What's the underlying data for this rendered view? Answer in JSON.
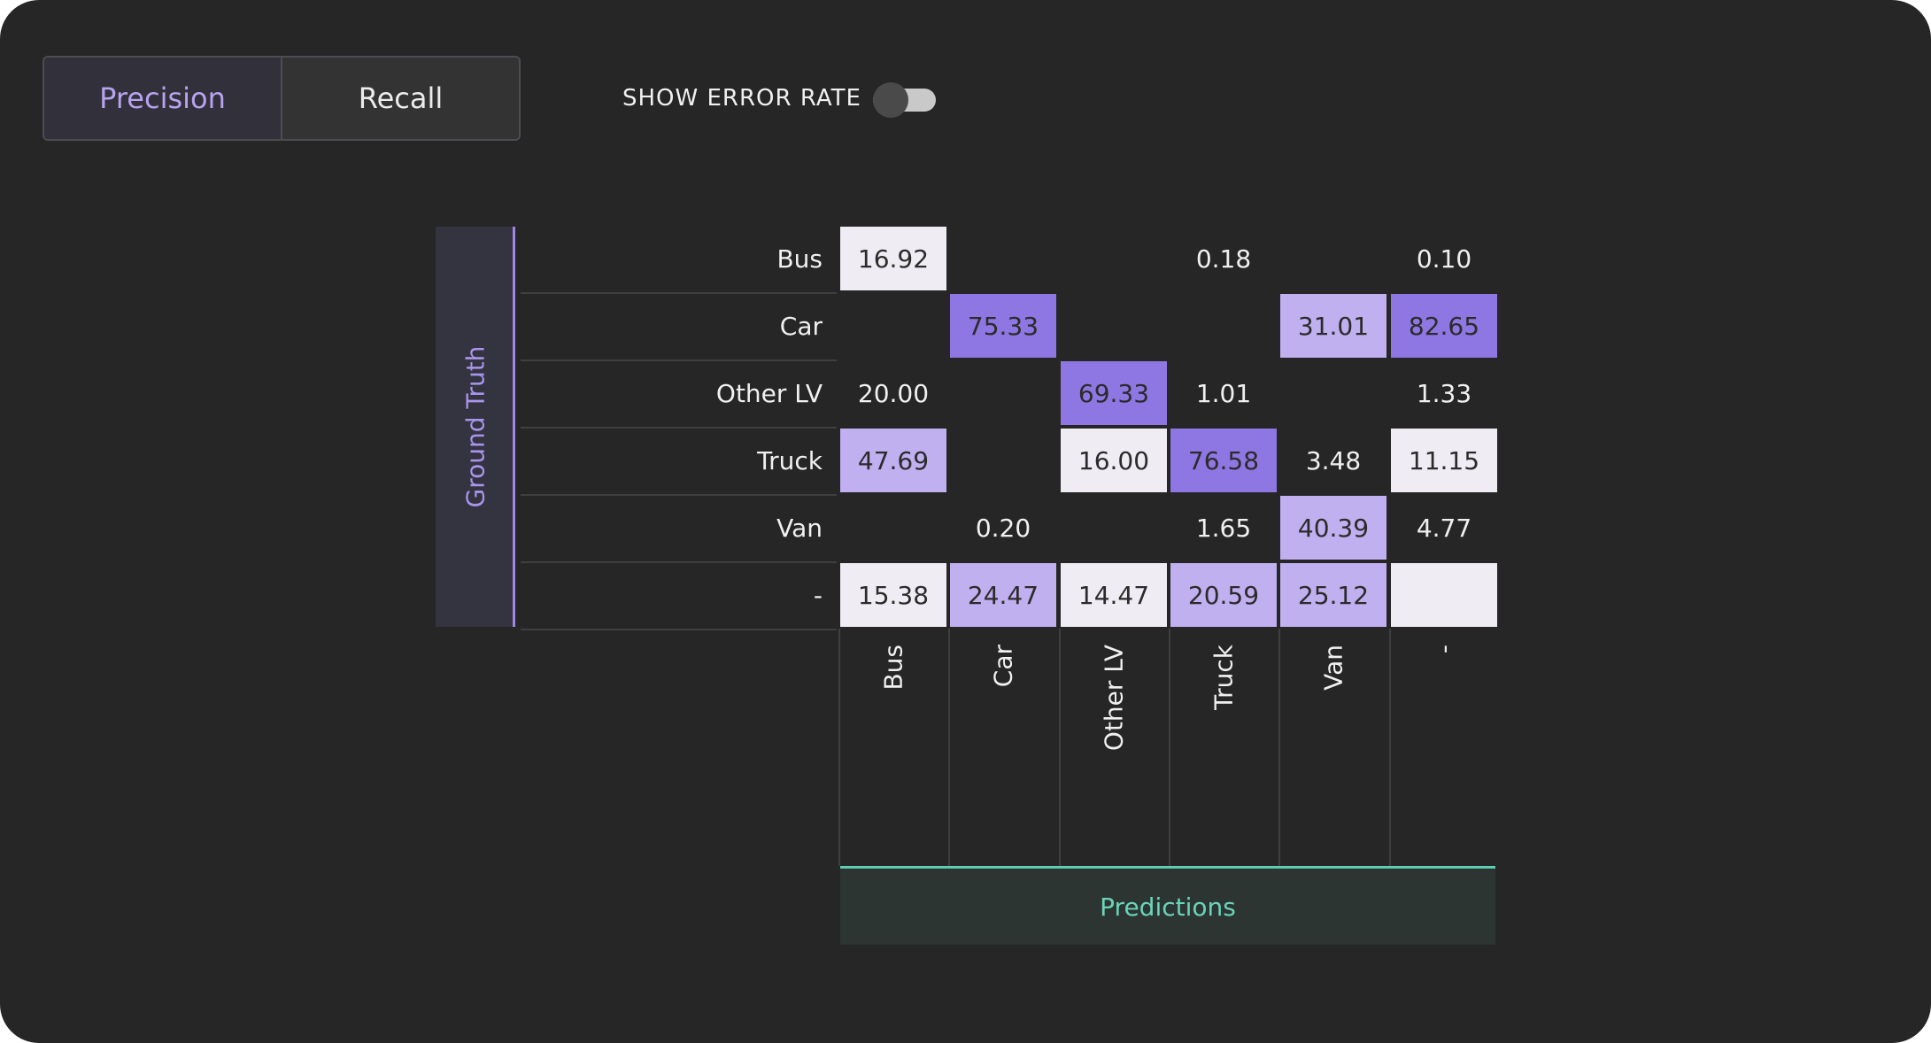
{
  "metric_tabs": [
    {
      "label": "Precision",
      "active": true
    },
    {
      "label": "Recall",
      "active": false
    }
  ],
  "error_rate": {
    "label": "SHOW ERROR RATE",
    "enabled": false
  },
  "axis": {
    "y_label": "Ground Truth",
    "x_label": "Predictions"
  },
  "chart_data": {
    "type": "heatmap",
    "rows": [
      "Bus",
      "Car",
      "Other LV",
      "Truck",
      "Van",
      "-"
    ],
    "columns": [
      "Bus",
      "Car",
      "Other LV",
      "Truck",
      "Van",
      "-"
    ],
    "values": [
      [
        "16.92",
        "",
        "",
        "0.18",
        "",
        "0.10"
      ],
      [
        "",
        "75.33",
        "",
        "",
        "31.01",
        "82.65"
      ],
      [
        "20.00",
        "",
        "69.33",
        "1.01",
        "",
        "1.33"
      ],
      [
        "47.69",
        "",
        "16.00",
        "76.58",
        "3.48",
        "11.15"
      ],
      [
        "",
        "0.20",
        "",
        "1.65",
        "40.39",
        "4.77"
      ],
      [
        "15.38",
        "24.47",
        "14.47",
        "20.59",
        "25.12",
        ""
      ]
    ],
    "shading": [
      [
        "light",
        "none",
        "none",
        "none",
        "none",
        "none"
      ],
      [
        "none",
        "dark",
        "none",
        "none",
        "medium",
        "dark"
      ],
      [
        "none",
        "none",
        "dark",
        "none",
        "none",
        "none"
      ],
      [
        "medium",
        "none",
        "light",
        "dark",
        "none",
        "light"
      ],
      [
        "none",
        "none",
        "none",
        "none",
        "medium",
        "none"
      ],
      [
        "light",
        "medium",
        "light",
        "medium",
        "medium",
        "light"
      ]
    ],
    "colors": {
      "light": "#efedf3",
      "medium": "#c0b0f0",
      "dark": "#8e77e2"
    }
  }
}
